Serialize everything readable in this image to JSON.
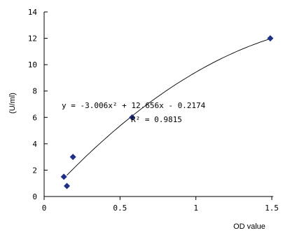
{
  "chart_data": {
    "type": "scatter",
    "xlabel": "OD value",
    "ylabel": "(U/ml)",
    "xlim": [
      0,
      1.5
    ],
    "ylim": [
      0,
      14
    ],
    "x_ticks": [
      "0",
      "0.5",
      "1",
      "1.5"
    ],
    "y_ticks": [
      "0",
      "2",
      "4",
      "6",
      "8",
      "10",
      "12",
      "14"
    ],
    "grid": false,
    "series": [
      {
        "marker": "diamond",
        "color": "#1f2e86",
        "points": [
          {
            "x": 0.13,
            "y": 1.5
          },
          {
            "x": 0.15,
            "y": 0.8
          },
          {
            "x": 0.19,
            "y": 3.0
          },
          {
            "x": 0.58,
            "y": 6.0
          },
          {
            "x": 1.49,
            "y": 12.0
          }
        ]
      }
    ],
    "trendline": {
      "kind": "polynomial",
      "coefficients": [
        -3.006,
        12.656,
        -0.2174
      ],
      "x_range": [
        0.15,
        1.49
      ],
      "equation": "y = -3.006x² + 12.656x - 0.2174",
      "r_squared": "R² = 0.9815",
      "color": "#000000"
    }
  }
}
